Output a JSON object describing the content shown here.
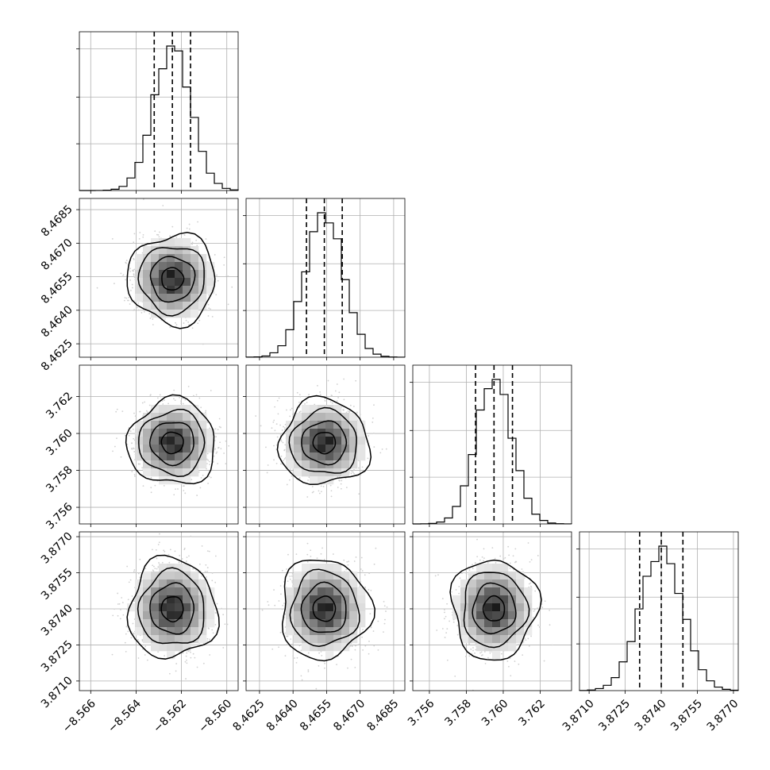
{
  "chart_data": {
    "type": "corner",
    "grid": true,
    "parameters": [
      {
        "index": 0,
        "range": [
          -8.5665,
          -8.5595
        ],
        "ticks": [
          -8.566,
          -8.564,
          -8.562,
          -8.56
        ],
        "tick_labels": [
          "−8.566",
          "−8.564",
          "−8.562",
          "−8.560"
        ],
        "quantiles": [
          -8.5632,
          -8.5624,
          -8.5616
        ],
        "mean": -8.5624,
        "std": 0.00082
      },
      {
        "index": 1,
        "range": [
          8.4619,
          8.469
        ],
        "ticks": [
          8.4625,
          8.464,
          8.4655,
          8.467,
          8.4685
        ],
        "tick_labels": [
          "8.4625",
          "8.4640",
          "8.4655",
          "8.4670",
          "8.4685"
        ],
        "quantiles": [
          8.4646,
          8.4654,
          8.4662
        ],
        "mean": 8.4654,
        "std": 0.00085
      },
      {
        "index": 2,
        "range": [
          3.7551,
          3.7637
        ],
        "ticks": [
          3.756,
          3.758,
          3.76,
          3.762
        ],
        "tick_labels": [
          "3.756",
          "3.758",
          "3.760",
          "3.762"
        ],
        "quantiles": [
          3.7585,
          3.7595,
          3.7605
        ],
        "mean": 3.7595,
        "std": 0.00098
      },
      {
        "index": 3,
        "range": [
          3.8706,
          3.8772
        ],
        "ticks": [
          3.871,
          3.8725,
          3.874,
          3.8755,
          3.877
        ],
        "tick_labels": [
          "3.8710",
          "3.8725",
          "3.8740",
          "3.8755",
          "3.8770"
        ],
        "quantiles": [
          3.8731,
          3.874,
          3.8749
        ],
        "mean": 3.874,
        "std": 0.00088
      }
    ],
    "histogram_bins": 20,
    "contour_levels_sigma": [
      0.5,
      1.0,
      1.5,
      2.0
    ],
    "colors": {
      "hist_line": "#000000",
      "quantile_line": "#000000",
      "grid": "#b0b0b0",
      "points": "#d0d0d0",
      "density_dark": "#000000",
      "background": "#ffffff"
    }
  }
}
